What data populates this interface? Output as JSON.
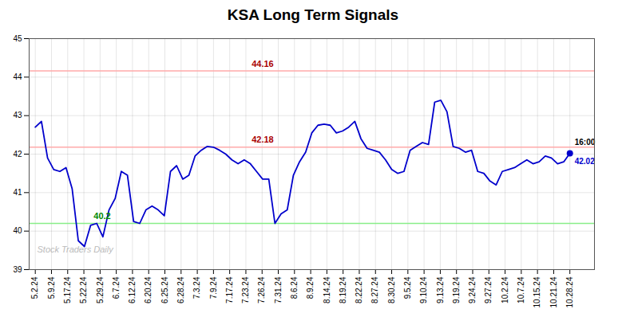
{
  "chart_data": {
    "type": "line",
    "title": "KSA Long Term Signals",
    "x": [
      0,
      1,
      2,
      3,
      4,
      5,
      6,
      7,
      8,
      9,
      10,
      11,
      12,
      13,
      14,
      15,
      16,
      17,
      18,
      19,
      20,
      21,
      22,
      23,
      24,
      25,
      26,
      27,
      28,
      29,
      30,
      31,
      32,
      33,
      34,
      35,
      36,
      37,
      38,
      39,
      40,
      41,
      42,
      43,
      44,
      45,
      46,
      47,
      48,
      49,
      50,
      51,
      52,
      53,
      54,
      55,
      56,
      57,
      58,
      59,
      60,
      61,
      62,
      63,
      64,
      65,
      66,
      67,
      68,
      69,
      70,
      71,
      72,
      73,
      74,
      75,
      76,
      77,
      78,
      79,
      80,
      81,
      82,
      83,
      84,
      85,
      86,
      87
    ],
    "values": [
      42.7,
      42.85,
      41.9,
      41.6,
      41.55,
      41.65,
      41.1,
      39.75,
      39.6,
      40.15,
      40.2,
      39.85,
      40.55,
      40.85,
      41.55,
      41.45,
      40.25,
      40.2,
      40.55,
      40.65,
      40.55,
      40.4,
      41.55,
      41.7,
      41.35,
      41.45,
      41.95,
      42.1,
      42.2,
      42.18,
      42.1,
      42.0,
      41.85,
      41.75,
      41.85,
      41.75,
      41.55,
      41.35,
      41.35,
      40.2,
      40.45,
      40.55,
      41.45,
      41.8,
      42.05,
      42.55,
      42.75,
      42.78,
      42.75,
      42.55,
      42.6,
      42.7,
      42.85,
      42.4,
      42.15,
      42.1,
      42.05,
      41.85,
      41.6,
      41.5,
      41.55,
      42.1,
      42.2,
      42.3,
      42.25,
      43.35,
      43.4,
      43.1,
      42.2,
      42.15,
      42.05,
      42.1,
      41.55,
      41.5,
      41.3,
      41.2,
      41.55,
      41.6,
      41.65,
      41.75,
      41.85,
      41.75,
      41.8,
      41.95,
      41.9,
      41.75,
      41.8,
      42.02
    ],
    "color": "#0000cc",
    "xlim": [
      -1,
      91
    ],
    "xticks": [
      {
        "value": 0,
        "label": "5.2.24"
      },
      {
        "value": 2.6363636363636362,
        "label": "5.9.24"
      },
      {
        "value": 5.2727272727272725,
        "label": "5.17.24"
      },
      {
        "value": 7.909090909090909,
        "label": "5.22.24"
      },
      {
        "value": 10.545454545454545,
        "label": "5.29.24"
      },
      {
        "value": 13.181818181818182,
        "label": "6.7.24"
      },
      {
        "value": 15.818181818181818,
        "label": "6.12.24"
      },
      {
        "value": 18.454545454545453,
        "label": "6.20.24"
      },
      {
        "value": 21.09090909090909,
        "label": "6.25.24"
      },
      {
        "value": 23.727272727272727,
        "label": "6.28.24"
      },
      {
        "value": 26.363636363636363,
        "label": "7.3.24"
      },
      {
        "value": 29,
        "label": "7.9.24"
      },
      {
        "value": 31.636363636363637,
        "label": "7.17.24"
      },
      {
        "value": 34.27272727272727,
        "label": "7.23.24"
      },
      {
        "value": 36.90909090909091,
        "label": "7.26.24"
      },
      {
        "value": 39.54545454545455,
        "label": "7.31.24"
      },
      {
        "value": 42.18181818181818,
        "label": "8.6.24"
      },
      {
        "value": 44.81818181818182,
        "label": "8.9.24"
      },
      {
        "value": 47.45454545454545,
        "label": "8.14.24"
      },
      {
        "value": 50.09090909090909,
        "label": "8.19.24"
      },
      {
        "value": 52.72727272727273,
        "label": "8.22.24"
      },
      {
        "value": 55.36363636363637,
        "label": "8.27.24"
      },
      {
        "value": 58,
        "label": "8.30.24"
      },
      {
        "value": 60.63636363636363,
        "label": "9.5.24"
      },
      {
        "value": 63.27272727272727,
        "label": "9.10.24"
      },
      {
        "value": 65.9090909090909,
        "label": "9.13.24"
      },
      {
        "value": 68.54545454545455,
        "label": "9.19.24"
      },
      {
        "value": 71.18181818181819,
        "label": "9.24.24"
      },
      {
        "value": 73.81818181818181,
        "label": "9.27.24"
      },
      {
        "value": 76.45454545454545,
        "label": "10.2.24"
      },
      {
        "value": 79.0909090909091,
        "label": "10.7.24"
      },
      {
        "value": 81.72727272727272,
        "label": "10.15.24"
      },
      {
        "value": 84.36363636363636,
        "label": "10.21.24"
      },
      {
        "value": 87,
        "label": "10.28.24"
      }
    ],
    "ylim": [
      39,
      45
    ],
    "yticks": [
      39,
      40,
      41,
      42,
      43,
      44,
      45
    ],
    "grid": true,
    "hlines": [
      {
        "value": 44.16,
        "color": "#ffaaaa",
        "label": "44.16",
        "label_color": "#aa0000"
      },
      {
        "value": 42.18,
        "color": "#ffaaaa",
        "label": "42.18",
        "label_color": "#aa0000"
      },
      {
        "value": 40.2,
        "color": "#88ee88",
        "label": "40.2",
        "label_color": "#008800"
      }
    ],
    "end_labels": [
      {
        "text": "16:00",
        "color": "#000000"
      },
      {
        "text": "42.02",
        "color": "#0000cc"
      }
    ],
    "watermark": {
      "text": "Stock Traders Daily",
      "color": "#bbbbbb"
    }
  }
}
